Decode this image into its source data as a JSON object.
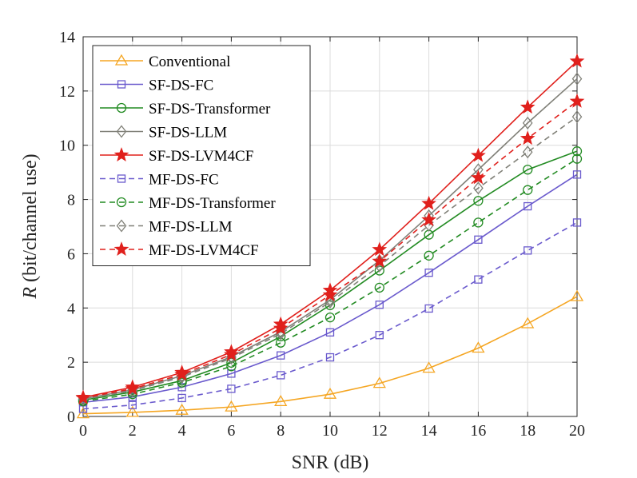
{
  "chart_data": {
    "type": "line",
    "xlabel": "SNR (dB)",
    "ylabel_var": "R",
    "ylabel_rest": " (bit/channel use)",
    "xlim": [
      0,
      20
    ],
    "ylim": [
      0,
      14
    ],
    "xticks": [
      0,
      2,
      4,
      6,
      8,
      10,
      12,
      14,
      16,
      18,
      20
    ],
    "yticks": [
      0,
      2,
      4,
      6,
      8,
      10,
      12,
      14
    ],
    "grid": true,
    "legend_position": "top-left",
    "x": [
      0,
      2,
      4,
      6,
      8,
      10,
      12,
      14,
      16,
      18,
      20
    ],
    "series": [
      {
        "name": "Conventional",
        "color": "#f5a623",
        "dash": "solid",
        "marker": "triangle",
        "values": [
          0.1,
          0.15,
          0.23,
          0.35,
          0.55,
          0.82,
          1.22,
          1.78,
          2.52,
          3.42,
          4.42
        ]
      },
      {
        "name": "SF-DS-FC",
        "color": "#6a5acd",
        "dash": "solid",
        "marker": "square",
        "values": [
          0.52,
          0.72,
          1.08,
          1.58,
          2.25,
          3.1,
          4.12,
          5.3,
          6.52,
          7.75,
          8.92
        ]
      },
      {
        "name": "SF-DS-Transformer",
        "color": "#228b22",
        "dash": "solid",
        "marker": "circle",
        "values": [
          0.6,
          0.9,
          1.32,
          1.98,
          2.95,
          4.1,
          5.38,
          6.7,
          7.95,
          9.1,
          9.78
        ]
      },
      {
        "name": "SF-DS-LLM",
        "color": "#808078",
        "dash": "solid",
        "marker": "diamond",
        "values": [
          0.65,
          0.98,
          1.5,
          2.2,
          3.12,
          4.3,
          5.75,
          7.4,
          9.1,
          10.82,
          12.45
        ]
      },
      {
        "name": "SF-DS-LVM4CF",
        "color": "#e0201c",
        "dash": "solid",
        "marker": "star",
        "values": [
          0.7,
          1.08,
          1.62,
          2.38,
          3.4,
          4.65,
          6.15,
          7.85,
          9.62,
          11.4,
          13.1
        ]
      },
      {
        "name": "MF-DS-FC",
        "color": "#6a5acd",
        "dash": "dashed",
        "marker": "square",
        "values": [
          0.28,
          0.42,
          0.68,
          1.02,
          1.52,
          2.18,
          3.0,
          3.98,
          5.05,
          6.12,
          7.15
        ]
      },
      {
        "name": "MF-DS-Transformer",
        "color": "#228b22",
        "dash": "dashed",
        "marker": "circle",
        "values": [
          0.56,
          0.82,
          1.25,
          1.85,
          2.72,
          3.65,
          4.75,
          5.93,
          7.15,
          8.35,
          9.5
        ]
      },
      {
        "name": "MF-DS-LLM",
        "color": "#808078",
        "dash": "dashed",
        "marker": "diamond",
        "values": [
          0.63,
          0.95,
          1.45,
          2.15,
          3.05,
          4.22,
          5.55,
          7.05,
          8.42,
          9.75,
          11.05
        ]
      },
      {
        "name": "MF-DS-LVM4CF",
        "color": "#e0201c",
        "dash": "dashed",
        "marker": "star",
        "values": [
          0.68,
          1.02,
          1.55,
          2.28,
          3.25,
          4.48,
          5.72,
          7.25,
          8.8,
          10.25,
          11.62
        ]
      }
    ]
  }
}
